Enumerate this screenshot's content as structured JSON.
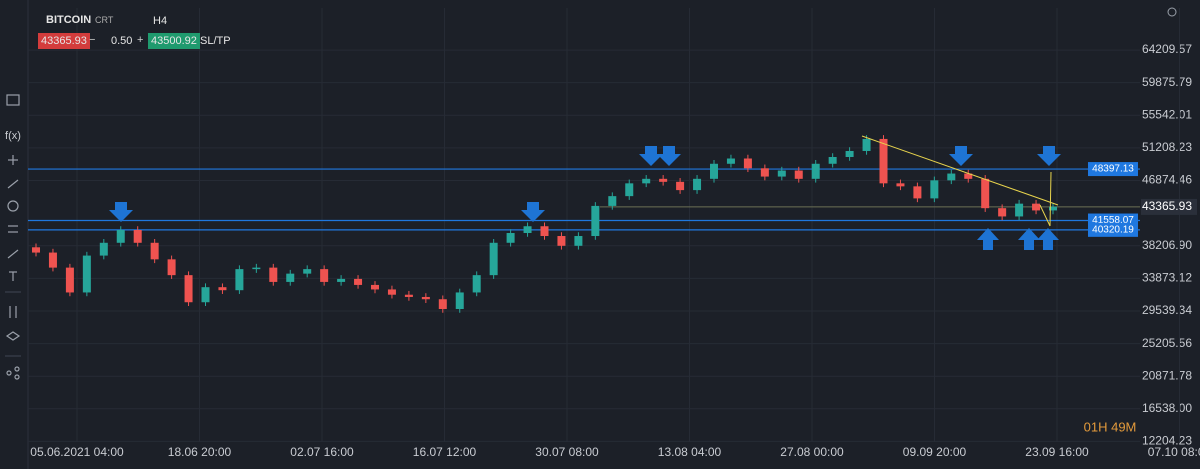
{
  "toolbar": {
    "symbol": "BITCOIN",
    "asset_class": "CRT",
    "timeframe": "H4",
    "bid": "43365.93",
    "lot": "0.50",
    "ask": "43500.92",
    "sltp": "SL/TP"
  },
  "chart_data": {
    "type": "candlestick",
    "open": [
      38000,
      37300,
      35300,
      32000,
      36900,
      38600,
      40300,
      38600,
      36400,
      34300,
      30700,
      32700,
      32300,
      35100,
      35300,
      33400,
      34500,
      35100,
      33400,
      33800,
      33000,
      32400,
      31700,
      31400,
      31100,
      29800,
      32000,
      34300,
      38600,
      39900,
      40800,
      39500,
      38200,
      39500,
      43500,
      44800,
      46500,
      47100,
      46700,
      45600,
      47100,
      49100,
      49800,
      48500,
      47400,
      48200,
      47100,
      49100,
      50000,
      50800,
      52400,
      46500,
      46100,
      44500,
      46900,
      47800,
      47100,
      43200,
      42100,
      43800,
      42900
    ],
    "high": [
      38500,
      37800,
      35800,
      37400,
      39100,
      40800,
      40800,
      39100,
      36900,
      34800,
      33200,
      33200,
      35600,
      35800,
      35800,
      35000,
      35600,
      35600,
      34300,
      34300,
      33500,
      32900,
      32200,
      31900,
      31600,
      32500,
      34800,
      39100,
      40400,
      41300,
      41300,
      40000,
      40000,
      44000,
      45300,
      47000,
      47600,
      47600,
      47200,
      47600,
      49600,
      50300,
      50300,
      49000,
      48700,
      48700,
      49600,
      50500,
      51300,
      52900,
      52900,
      47000,
      46600,
      47400,
      48300,
      48300,
      47600,
      43700,
      44300,
      44300,
      43900
    ],
    "low": [
      36800,
      34800,
      31500,
      31500,
      36400,
      38100,
      38100,
      35900,
      33800,
      30200,
      30200,
      31800,
      31800,
      34600,
      32900,
      32900,
      34000,
      32900,
      32900,
      32500,
      31900,
      31200,
      30900,
      30600,
      29300,
      29300,
      31500,
      33800,
      38100,
      39400,
      39000,
      37700,
      37700,
      39000,
      43000,
      44300,
      46000,
      46200,
      45100,
      45100,
      46600,
      48600,
      48000,
      46900,
      46900,
      46600,
      46600,
      48600,
      49500,
      50300,
      46000,
      45600,
      44000,
      44000,
      46400,
      46600,
      42700,
      41600,
      41600,
      42400,
      42400
    ],
    "close": [
      37300,
      35300,
      32000,
      36900,
      38600,
      40300,
      38600,
      36400,
      34300,
      30700,
      32700,
      32300,
      35100,
      35300,
      33400,
      34500,
      35100,
      33400,
      33800,
      33000,
      32400,
      31700,
      31400,
      31100,
      29800,
      32000,
      34300,
      38600,
      39900,
      40800,
      39500,
      38200,
      39500,
      43500,
      44800,
      46500,
      47100,
      46700,
      45600,
      47100,
      49100,
      49800,
      48500,
      47400,
      48200,
      47100,
      49100,
      50000,
      50800,
      52400,
      46500,
      46100,
      44500,
      46900,
      47800,
      47100,
      43200,
      42100,
      43800,
      42900,
      43400
    ],
    "up_color": "#26a69a",
    "down_color": "#ef5350",
    "ylim": [
      10400,
      69800
    ],
    "yticks": [
      64209.57,
      59875.79,
      55542.01,
      51208.23,
      46874.46,
      {
        "value": 38206.9,
        "label": "38206.90"
      },
      33873.12,
      29539.34,
      25205.56,
      20871.78,
      {
        "value": 16538,
        "label": "16538.00"
      },
      12204.23
    ],
    "xtick_labels": [
      "05.06.2021 04:00",
      "18.06 20:00",
      "02.07 16:00",
      "16.07 12:00",
      "30.07 08:00",
      "13.08 04:00",
      "27.08 00:00",
      "09.09 20:00",
      "23.09 16:00",
      "07.10 08:00"
    ],
    "grid": true,
    "current_price": 43365.93,
    "price_lines": [
      {
        "value": 48397.13,
        "color": "#1f78e0"
      },
      {
        "value": 41558.07,
        "color": "#1f78e0"
      },
      {
        "value": 40320.19,
        "color": "#1f78e0"
      }
    ],
    "countdown": "01H 49M"
  }
}
